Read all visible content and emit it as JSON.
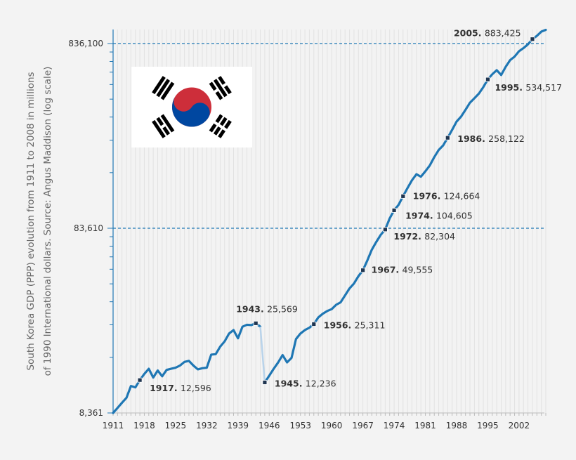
{
  "chart_data": {
    "type": "line",
    "ylabel_line1": "South Korea GDP (PPP) evolution from 1911 to 2008 in millions",
    "ylabel_line2": "of 1990 International dollars. Source: Angus Maddison (log scale)",
    "y_scale": "log",
    "ylim": [
      8361,
      1000000
    ],
    "xlim": [
      1911,
      2008
    ],
    "y_ticks": [
      {
        "value": 8361,
        "label": "8,361"
      },
      {
        "value": 83610,
        "label": "83,610"
      },
      {
        "value": 836100,
        "label": "836,100"
      }
    ],
    "x_ticks": [
      1911,
      1918,
      1925,
      1932,
      1939,
      1946,
      1953,
      1960,
      1967,
      1974,
      1981,
      1988,
      1995,
      2002
    ],
    "reference_lines": [
      83610,
      836100
    ],
    "series": [
      {
        "color": "#1f77b4",
        "segments": [
          {
            "x": [
              1911,
              1912,
              1913,
              1914,
              1915,
              1916,
              1917,
              1918,
              1919,
              1920,
              1921,
              1922,
              1923,
              1924,
              1925,
              1926,
              1927,
              1928,
              1929,
              1930,
              1931,
              1932,
              1933,
              1934,
              1935,
              1936,
              1937,
              1938,
              1939,
              1940,
              1941,
              1942,
              1943,
              1944
            ],
            "y": [
              8361,
              8900,
              9500,
              10100,
              11700,
              11500,
              12596,
              13600,
              14500,
              13000,
              14200,
              13200,
              14300,
              14500,
              14700,
              15100,
              15800,
              16000,
              15100,
              14400,
              14600,
              14700,
              17300,
              17400,
              19100,
              20400,
              22500,
              23500,
              21200,
              24500,
              25100,
              25000,
              25569,
              24500
            ]
          },
          {
            "x": [
              1945,
              1946,
              1947,
              1948,
              1949,
              1950,
              1951,
              1952,
              1953,
              1954,
              1955,
              1956,
              1957,
              1958,
              1959,
              1960,
              1961,
              1962,
              1963,
              1964,
              1965,
              1966,
              1967,
              1968,
              1969,
              1970,
              1971,
              1972,
              1973,
              1974,
              1975,
              1976,
              1977,
              1978,
              1979,
              1980,
              1981,
              1982,
              1983,
              1984,
              1985,
              1986,
              1987,
              1988,
              1989,
              1990,
              1991,
              1992,
              1993,
              1994,
              1995,
              1996,
              1997,
              1998,
              1999,
              2000,
              2001,
              2002,
              2003,
              2004,
              2005,
              2006,
              2007,
              2008
            ],
            "y": [
              12236,
              13300,
              14500,
              15700,
              17200,
              15700,
              16600,
              21000,
              22500,
              23500,
              24200,
              25311,
              27500,
              28800,
              29800,
              30500,
              32200,
              33200,
              36200,
              39500,
              42000,
              46000,
              49555,
              56000,
              64000,
              70500,
              77000,
              82304,
              94500,
              104605,
              112000,
              124664,
              138000,
              152000,
              164000,
              159000,
              170000,
              183000,
              203000,
              222000,
              235000,
              258122,
              285000,
              316000,
              336000,
              366000,
              400000,
              423000,
              448000,
              486000,
              534517,
              570000,
              600000,
              565000,
              625000,
              680000,
              710000,
              760000,
              790000,
              828000,
              883425,
              920000,
              970000,
              992000
            ]
          }
        ]
      }
    ],
    "annotations": [
      {
        "year": 1917,
        "year_label": "1917.",
        "value_label": "12,596",
        "value": 12596
      },
      {
        "year": 1943,
        "year_label": "1943.",
        "value_label": "25,569",
        "value": 25569
      },
      {
        "year": 1945,
        "year_label": "1945.",
        "value_label": "12,236",
        "value": 12236
      },
      {
        "year": 1956,
        "year_label": "1956.",
        "value_label": "25,311",
        "value": 25311
      },
      {
        "year": 1967,
        "year_label": "1967.",
        "value_label": "49,555",
        "value": 49555
      },
      {
        "year": 1972,
        "year_label": "1972.",
        "value_label": "82,304",
        "value": 82304
      },
      {
        "year": 1974,
        "year_label": "1974.",
        "value_label": "104,605",
        "value": 104605
      },
      {
        "year": 1976,
        "year_label": "1976.",
        "value_label": "124,664",
        "value": 124664
      },
      {
        "year": 1986,
        "year_label": "1986.",
        "value_label": "258,122",
        "value": 258122
      },
      {
        "year": 1995,
        "year_label": "1995.",
        "value_label": "534,517",
        "value": 534517
      },
      {
        "year": 2005,
        "year_label": "2005.",
        "value_label": "883,425",
        "value": 883425
      }
    ],
    "grid": "minor vertical gridlines at each year",
    "flag_image": "south-korea-flag",
    "colors": {
      "line": "#1f77b4",
      "reference": "#1f77b4",
      "axis": "#1f77b4",
      "background": "#f3f3f3"
    }
  }
}
